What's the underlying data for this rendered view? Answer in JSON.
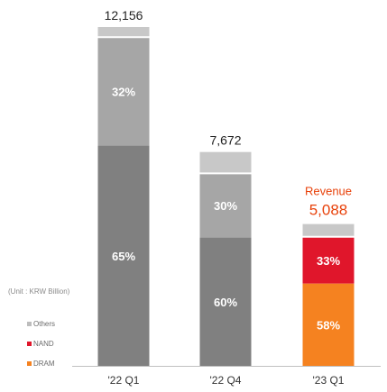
{
  "unit_note": "(Unit : KRW Billion)",
  "colors": {
    "others": "#bdbdbd",
    "nand": "#e0162b",
    "dram": "#f58220",
    "bar_upper": "#a6a6a6",
    "bar_lower": "#808080",
    "bar_top": "#c8c8c8",
    "highlight_text": "#e8420b",
    "axis": "#c0c0c0"
  },
  "chart_data": {
    "type": "bar",
    "stacked": true,
    "categories": [
      "'22 Q1",
      "'22 Q4",
      "'23 Q1"
    ],
    "totals": [
      12156,
      7672,
      5088
    ],
    "total_labels": [
      "12,156",
      "7,672",
      "5,088"
    ],
    "highlight_label": "Revenue",
    "series": [
      {
        "name": "DRAM",
        "percent": [
          65,
          60,
          58
        ],
        "labels": [
          "65%",
          "60%",
          "58%"
        ]
      },
      {
        "name": "NAND",
        "percent": [
          32,
          30,
          33
        ],
        "labels": [
          "32%",
          "30%",
          "33%"
        ]
      },
      {
        "name": "Others",
        "percent": [
          3,
          10,
          9
        ],
        "labels": [
          "",
          "",
          ""
        ]
      }
    ],
    "legend": [
      "Others",
      "NAND",
      "DRAM"
    ],
    "legend_position": "left",
    "ylim": [
      0,
      13000
    ],
    "grid": false
  }
}
